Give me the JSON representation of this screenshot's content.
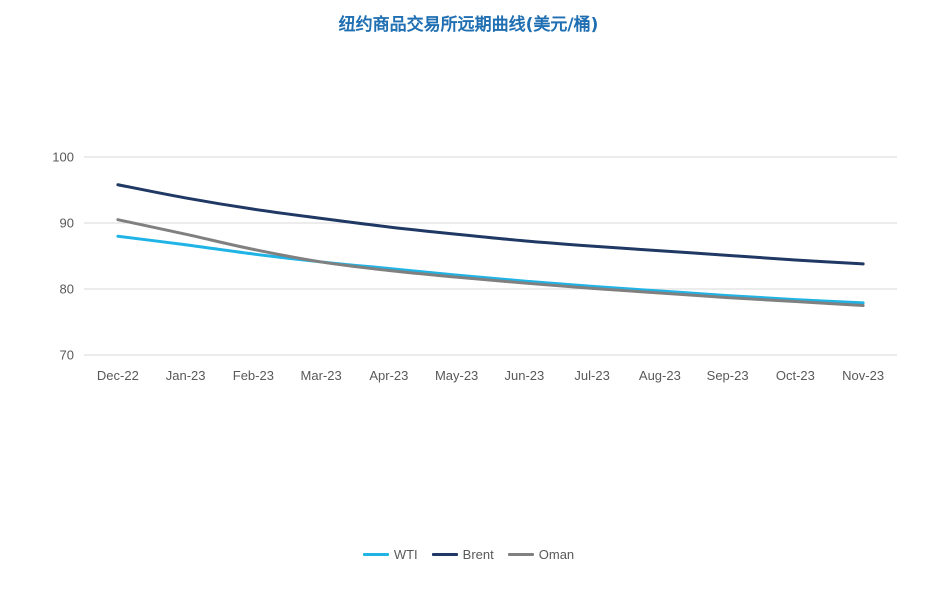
{
  "title": "纽约商品交易所远期曲线(美元/桶)",
  "chart_data": {
    "type": "line",
    "title": "纽约商品交易所远期曲线(美元/桶)",
    "categories": [
      "Dec-22",
      "Jan-23",
      "Feb-23",
      "Mar-23",
      "Apr-23",
      "May-23",
      "Jun-23",
      "Jul-23",
      "Aug-23",
      "Sep-23",
      "Oct-23",
      "Nov-23"
    ],
    "series": [
      {
        "name": "WTI",
        "color": "#1fb4e5",
        "values": [
          88.0,
          86.7,
          85.3,
          84.1,
          83.1,
          82.1,
          81.2,
          80.4,
          79.7,
          79.0,
          78.4,
          77.9
        ]
      },
      {
        "name": "Brent",
        "color": "#1f3864",
        "values": [
          95.8,
          93.8,
          92.1,
          90.7,
          89.4,
          88.3,
          87.3,
          86.5,
          85.8,
          85.1,
          84.4,
          83.8
        ]
      },
      {
        "name": "Oman",
        "color": "#808080",
        "values": [
          90.5,
          88.3,
          86.0,
          84.1,
          82.8,
          81.8,
          80.9,
          80.1,
          79.4,
          78.7,
          78.1,
          77.5
        ]
      }
    ],
    "yticks": [
      70,
      80,
      90,
      100
    ],
    "ylim": [
      70,
      100
    ],
    "xlabel": "",
    "ylabel": "",
    "grid": true,
    "legend_position": "bottom"
  }
}
